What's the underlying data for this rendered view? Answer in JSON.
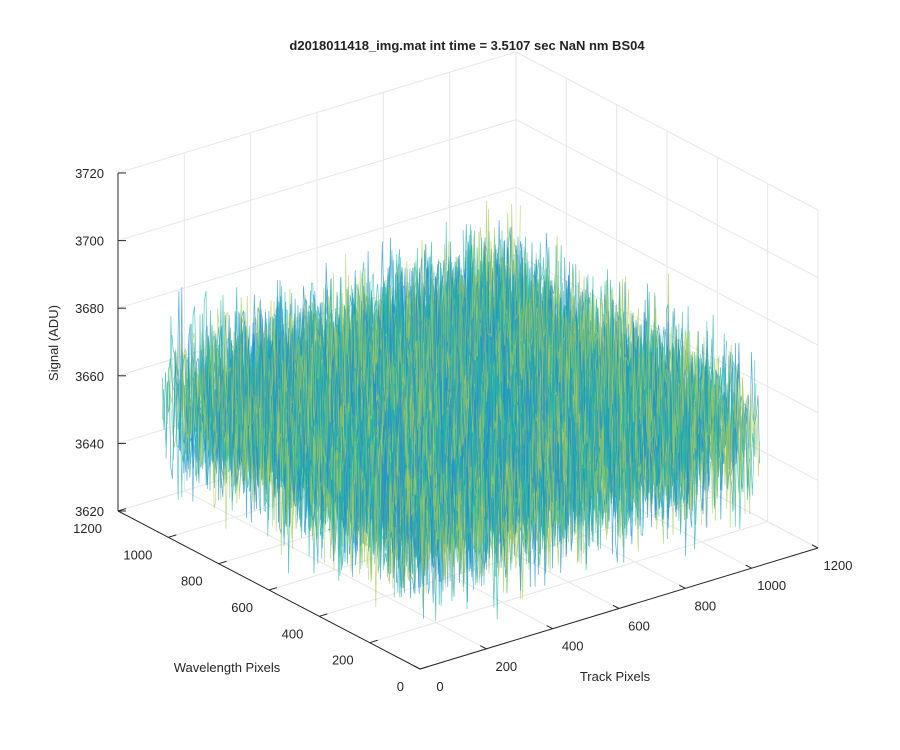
{
  "chart_data": {
    "type": "surface3d",
    "title": "d2018011418_img.mat int time = 3.5107 sec  NaN nm BS04",
    "xlabel": "Track Pixels",
    "ylabel": "Wavelength Pixels",
    "zlabel": "Signal (ADU)",
    "xlim": [
      0,
      1200
    ],
    "ylim": [
      0,
      1200
    ],
    "zlim": [
      3620,
      3720
    ],
    "x_ticks": [
      "0",
      "200",
      "400",
      "600",
      "800",
      "1000",
      "1200"
    ],
    "y_ticks": [
      "0",
      "200",
      "400",
      "600",
      "800",
      "1000",
      "1200"
    ],
    "z_ticks": [
      "3620",
      "3640",
      "3660",
      "3680",
      "3700",
      "3720"
    ],
    "surface": {
      "x_extent": [
        0,
        1024
      ],
      "y_extent": [
        0,
        1024
      ],
      "mean_signal": 3660,
      "noise_range": [
        3630,
        3700
      ]
    },
    "grid": true,
    "colors": {
      "colormap": "parula",
      "surface_dark": "#1f8fd0",
      "surface_mid": "#22b3aa",
      "surface_light": "#a6c95a",
      "axis": "#262626",
      "grid": "#e6e6e6"
    }
  }
}
